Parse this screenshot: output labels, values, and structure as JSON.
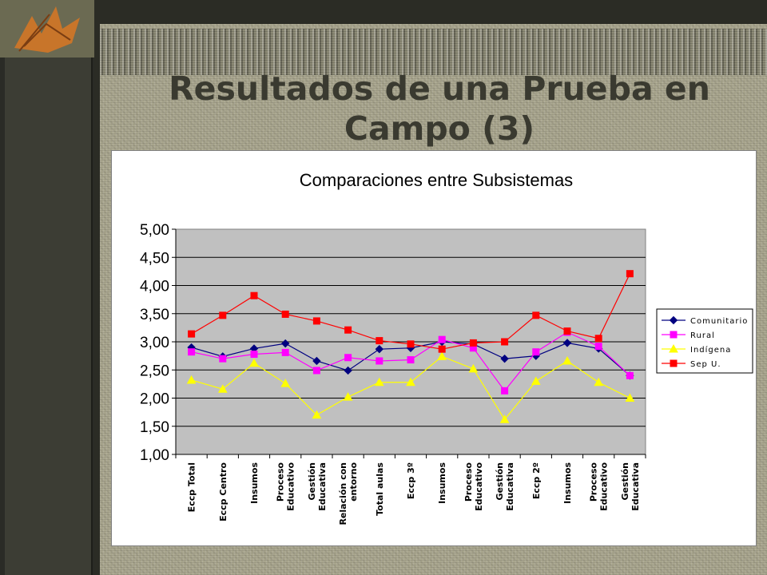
{
  "slide": {
    "title_line1": "Resultados de una Prueba en",
    "title_line2": "Campo (3)"
  },
  "colors": {
    "comunitario": "#000080",
    "rural": "#ff00ff",
    "indigena": "#ffff00",
    "sepu": "#ff0000",
    "plot_bg": "#c0c0c0"
  },
  "chart_data": {
    "type": "line",
    "title": "Comparaciones entre Subsistemas",
    "xlabel": "",
    "ylabel": "",
    "ylim": [
      1,
      5
    ],
    "yticks": [
      "1,00",
      "1,50",
      "2,00",
      "2,50",
      "3,00",
      "3,50",
      "4,00",
      "4,50",
      "5,00"
    ],
    "grid": true,
    "legend": "right",
    "categories": [
      [
        "Eccp Total"
      ],
      [
        "Eccp Centro"
      ],
      [
        "Insumos"
      ],
      [
        "Proceso",
        "Educativo"
      ],
      [
        "Gestión",
        "Educativa"
      ],
      [
        "Relación con",
        "entorno"
      ],
      [
        "Total aulas"
      ],
      [
        "Eccp 3º"
      ],
      [
        "Insumos"
      ],
      [
        "Proceso",
        "Educativo"
      ],
      [
        "Gestión",
        "Educativa"
      ],
      [
        "Eccp 2º"
      ],
      [
        "Insumos"
      ],
      [
        "Proceso",
        "Educativo"
      ],
      [
        "Gestión",
        "Educativa"
      ]
    ],
    "series": [
      {
        "name": "Comunitario",
        "color": "#000080",
        "marker": "diamond",
        "values": [
          2.9,
          2.74,
          2.88,
          2.97,
          2.66,
          2.49,
          2.87,
          2.89,
          3.0,
          2.96,
          2.7,
          2.75,
          2.98,
          2.88,
          2.4
        ]
      },
      {
        "name": "Rural",
        "color": "#ff00ff",
        "marker": "square",
        "values": [
          2.82,
          2.7,
          2.78,
          2.81,
          2.49,
          2.72,
          2.66,
          2.68,
          3.04,
          2.89,
          2.13,
          2.82,
          3.17,
          2.92,
          2.4
        ]
      },
      {
        "name": "Indígena",
        "color": "#ffff00",
        "marker": "triangle",
        "values": [
          2.32,
          2.16,
          2.62,
          2.26,
          1.7,
          2.02,
          2.28,
          2.28,
          2.74,
          2.52,
          1.62,
          2.3,
          2.66,
          2.28,
          2.0
        ]
      },
      {
        "name": "Sep U.",
        "color": "#ff0000",
        "marker": "square",
        "values": [
          3.14,
          3.47,
          3.82,
          3.49,
          3.37,
          3.21,
          3.02,
          2.96,
          2.87,
          2.98,
          3.0,
          3.47,
          3.19,
          3.06,
          4.21
        ]
      }
    ]
  }
}
